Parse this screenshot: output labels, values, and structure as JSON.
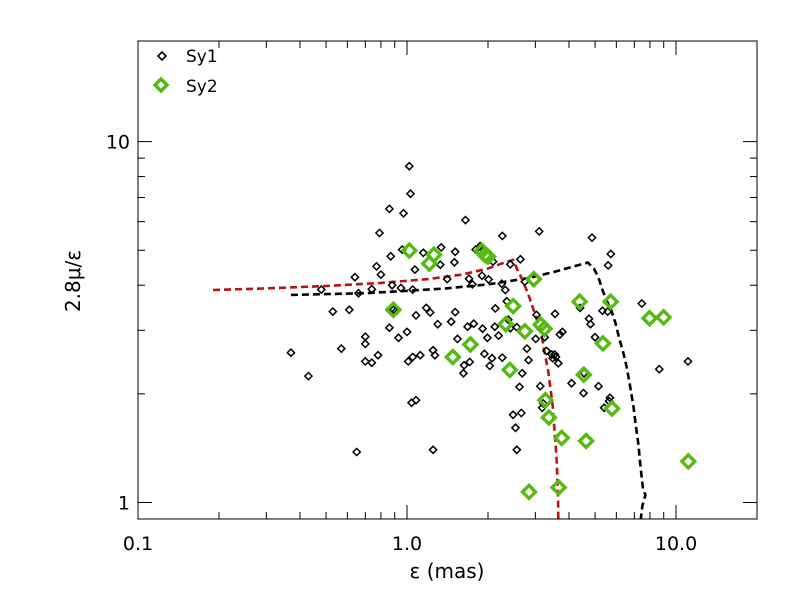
{
  "chart_data": {
    "type": "scatter",
    "title": "",
    "xlabel": "ε (mas)",
    "ylabel": "2.8μ/ε",
    "xscale": "log",
    "yscale": "log",
    "xlim": [
      0.1,
      20
    ],
    "ylim": [
      0.9,
      19
    ],
    "grid": false,
    "legend_position": "top-left",
    "x_ticks": [
      {
        "value": 0.1,
        "label": "0.1"
      },
      {
        "value": 1.0,
        "label": "1.0"
      },
      {
        "value": 10.0,
        "label": "10.0"
      }
    ],
    "y_ticks": [
      {
        "value": 1,
        "label": "1"
      },
      {
        "value": 10,
        "label": "10"
      }
    ],
    "series": [
      {
        "name": "Sy1",
        "marker": "diamond-small",
        "color": "#000000",
        "points": [
          [
            0.37,
            2.6
          ],
          [
            0.43,
            2.24
          ],
          [
            0.48,
            3.89
          ],
          [
            0.53,
            3.38
          ],
          [
            0.57,
            2.67
          ],
          [
            0.61,
            3.42
          ],
          [
            0.64,
            4.21
          ],
          [
            0.65,
            1.38
          ],
          [
            0.66,
            3.8
          ],
          [
            0.7,
            2.88
          ],
          [
            0.7,
            2.75
          ],
          [
            0.7,
            2.46
          ],
          [
            0.74,
            2.44
          ],
          [
            0.74,
            3.9
          ],
          [
            0.77,
            4.51
          ],
          [
            0.78,
            2.56
          ],
          [
            0.79,
            5.58
          ],
          [
            0.8,
            4.28
          ],
          [
            0.86,
            3.05
          ],
          [
            0.86,
            6.51
          ],
          [
            0.87,
            4.81
          ],
          [
            0.88,
            4.0
          ],
          [
            0.89,
            3.42
          ],
          [
            0.91,
            3.39
          ],
          [
            0.93,
            2.86
          ],
          [
            0.95,
            3.93
          ],
          [
            0.96,
            5.02
          ],
          [
            0.97,
            6.33
          ],
          [
            1.0,
            2.97
          ],
          [
            1.01,
            2.46
          ],
          [
            1.02,
            8.55
          ],
          [
            1.03,
            7.17
          ],
          [
            1.04,
            1.89
          ],
          [
            1.05,
            2.53
          ],
          [
            1.05,
            3.89
          ],
          [
            1.07,
            4.42
          ],
          [
            1.08,
            1.92
          ],
          [
            1.08,
            3.3
          ],
          [
            1.12,
            2.56
          ],
          [
            1.15,
            4.92
          ],
          [
            1.18,
            3.46
          ],
          [
            1.22,
            3.36
          ],
          [
            1.25,
            2.64
          ],
          [
            1.25,
            1.4
          ],
          [
            1.27,
            2.56
          ],
          [
            1.3,
            3.12
          ],
          [
            1.33,
            4.56
          ],
          [
            1.34,
            5.09
          ],
          [
            1.41,
            4.16
          ],
          [
            1.46,
            3.17
          ],
          [
            1.5,
            4.63
          ],
          [
            1.51,
            3.37
          ],
          [
            1.51,
            4.95
          ],
          [
            1.54,
            2.84
          ],
          [
            1.62,
            2.28
          ],
          [
            1.63,
            2.4
          ],
          [
            1.65,
            6.06
          ],
          [
            1.68,
            3.07
          ],
          [
            1.7,
            4.17
          ],
          [
            1.71,
            2.45
          ],
          [
            1.75,
            4.02
          ],
          [
            1.77,
            3.13
          ],
          [
            1.8,
            5.02
          ],
          [
            1.87,
            5.13
          ],
          [
            1.9,
            4.25
          ],
          [
            1.91,
            3.03
          ],
          [
            1.94,
            2.58
          ],
          [
            1.99,
            2.86
          ],
          [
            2.01,
            4.15
          ],
          [
            2.03,
            2.39
          ],
          [
            2.07,
            2.51
          ],
          [
            2.09,
            4.65
          ],
          [
            2.12,
            3.07
          ],
          [
            2.13,
            3.45
          ],
          [
            2.19,
            2.9
          ],
          [
            2.25,
            4.04
          ],
          [
            2.26,
            5.48
          ],
          [
            2.26,
            2.52
          ],
          [
            2.32,
            3.88
          ],
          [
            2.35,
            3.61
          ],
          [
            2.38,
            3.21
          ],
          [
            2.42,
            3.04
          ],
          [
            2.42,
            4.57
          ],
          [
            2.48,
            1.75
          ],
          [
            2.53,
            1.61
          ],
          [
            2.56,
            1.4
          ],
          [
            2.56,
            3.06
          ],
          [
            2.62,
            2.09
          ],
          [
            2.64,
            4.72
          ],
          [
            2.66,
            1.77
          ],
          [
            2.68,
            2.28
          ],
          [
            2.74,
            4.09
          ],
          [
            2.79,
            2.67
          ],
          [
            2.83,
            2.48
          ],
          [
            3.01,
            2.84
          ],
          [
            3.03,
            3.31
          ],
          [
            3.1,
            5.64
          ],
          [
            3.13,
            2.1
          ],
          [
            3.18,
            1.83
          ],
          [
            3.21,
            1.88
          ],
          [
            3.25,
            2.87
          ],
          [
            3.3,
            2.63
          ],
          [
            3.45,
            2.57
          ],
          [
            3.48,
            2.51
          ],
          [
            3.54,
            2.57
          ],
          [
            3.55,
            3.33
          ],
          [
            3.58,
            2.53
          ],
          [
            3.65,
            2.43
          ],
          [
            3.7,
            2.92
          ],
          [
            3.78,
            2.97
          ],
          [
            4.09,
            2.14
          ],
          [
            4.4,
            3.46
          ],
          [
            4.53,
            2.01
          ],
          [
            4.55,
            2.28
          ],
          [
            4.75,
            3.23
          ],
          [
            4.81,
            3.12
          ],
          [
            4.87,
            5.42
          ],
          [
            5.0,
            2.87
          ],
          [
            5.15,
            2.1
          ],
          [
            5.33,
            3.4
          ],
          [
            5.41,
            1.83
          ],
          [
            5.57,
            3.38
          ],
          [
            5.59,
            4.54
          ],
          [
            5.64,
            1.91
          ],
          [
            5.68,
            1.95
          ],
          [
            5.72,
            4.88
          ],
          [
            7.46,
            3.56
          ],
          [
            8.67,
            2.34
          ],
          [
            11.08,
            2.46
          ]
        ]
      },
      {
        "name": "Sy2",
        "marker": "diamond-large",
        "color": "#55bb11",
        "points": [
          [
            0.89,
            3.42
          ],
          [
            1.02,
            4.99
          ],
          [
            1.21,
            4.59
          ],
          [
            1.26,
            4.86
          ],
          [
            1.48,
            2.53
          ],
          [
            1.72,
            2.74
          ],
          [
            1.9,
            4.98
          ],
          [
            1.95,
            4.85
          ],
          [
            2.0,
            4.8
          ],
          [
            2.33,
            3.12
          ],
          [
            2.41,
            2.33
          ],
          [
            2.48,
            3.5
          ],
          [
            2.74,
            2.98
          ],
          [
            2.84,
            1.07
          ],
          [
            2.96,
            4.16
          ],
          [
            3.14,
            3.11
          ],
          [
            3.24,
            3.03
          ],
          [
            3.27,
            1.92
          ],
          [
            3.37,
            1.72
          ],
          [
            3.66,
            1.1
          ],
          [
            3.76,
            1.51
          ],
          [
            4.38,
            3.6
          ],
          [
            4.54,
            2.26
          ],
          [
            4.63,
            1.48
          ],
          [
            5.35,
            2.76
          ],
          [
            5.71,
            3.6
          ],
          [
            5.78,
            1.82
          ],
          [
            7.97,
            3.24
          ],
          [
            8.99,
            3.26
          ],
          [
            11.11,
            1.3
          ]
        ]
      }
    ],
    "curves": [
      {
        "color": "#000000",
        "style": "dashed",
        "points": [
          [
            0.37,
            3.76
          ],
          [
            0.5,
            3.78
          ],
          [
            0.7,
            3.8
          ],
          [
            1.0,
            3.86
          ],
          [
            1.4,
            3.92
          ],
          [
            2.0,
            4.02
          ],
          [
            2.8,
            4.18
          ],
          [
            3.5,
            4.35
          ],
          [
            4.2,
            4.52
          ],
          [
            4.7,
            4.62
          ],
          [
            4.95,
            4.45
          ],
          [
            5.15,
            4.2
          ],
          [
            5.35,
            3.85
          ],
          [
            5.55,
            3.6
          ],
          [
            5.75,
            3.4
          ],
          [
            5.95,
            3.15
          ],
          [
            6.15,
            2.85
          ],
          [
            6.35,
            2.62
          ],
          [
            6.55,
            2.38
          ],
          [
            6.75,
            2.1
          ],
          [
            6.95,
            1.84
          ],
          [
            7.1,
            1.62
          ],
          [
            7.25,
            1.45
          ],
          [
            7.35,
            1.3
          ],
          [
            7.45,
            1.18
          ],
          [
            7.55,
            1.08
          ],
          [
            7.7,
            1.05
          ],
          [
            7.5,
            0.98
          ],
          [
            7.4,
            0.9
          ]
        ]
      },
      {
        "color": "#bb1111",
        "style": "dashed",
        "points": [
          [
            0.19,
            3.88
          ],
          [
            0.3,
            3.92
          ],
          [
            0.5,
            3.98
          ],
          [
            0.8,
            4.06
          ],
          [
            1.2,
            4.16
          ],
          [
            1.6,
            4.28
          ],
          [
            2.0,
            4.45
          ],
          [
            2.3,
            4.62
          ],
          [
            2.48,
            4.7
          ],
          [
            2.58,
            4.4
          ],
          [
            2.7,
            4.1
          ],
          [
            2.85,
            3.7
          ],
          [
            3.0,
            3.3
          ],
          [
            3.15,
            2.95
          ],
          [
            3.25,
            2.6
          ],
          [
            3.35,
            2.3
          ],
          [
            3.42,
            2.05
          ],
          [
            3.48,
            1.85
          ],
          [
            3.52,
            1.65
          ],
          [
            3.56,
            1.48
          ],
          [
            3.6,
            1.3
          ],
          [
            3.62,
            1.18
          ],
          [
            3.64,
            1.05
          ],
          [
            3.65,
            0.9
          ]
        ]
      }
    ]
  },
  "legend": {
    "items": [
      {
        "label": "Sy1",
        "color": "#000000"
      },
      {
        "label": "Sy2",
        "color": "#55bb11"
      }
    ]
  }
}
